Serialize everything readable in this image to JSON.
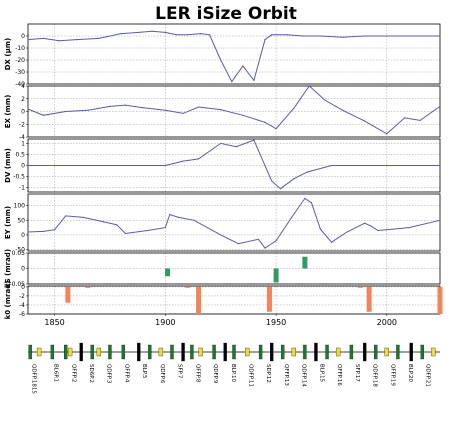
{
  "chart_data": [
    {
      "type": "line",
      "title": "LER iSize Orbit",
      "ylabel": "DX (μm)",
      "ylim": [
        -40,
        10
      ],
      "yticks": [
        0,
        -10,
        -20,
        -30,
        -40
      ],
      "xlim": [
        1838,
        2024
      ],
      "x": [
        1838,
        1845,
        1852,
        1860,
        1870,
        1880,
        1888,
        1894,
        1900,
        1905,
        1910,
        1916,
        1920,
        1925,
        1930,
        1935,
        1940,
        1945,
        1948,
        1955,
        1962,
        1970,
        1980,
        1990,
        2000,
        2010,
        2024
      ],
      "y": [
        -3,
        -2,
        -4,
        -3,
        -2,
        2,
        3,
        4,
        3,
        1,
        1,
        2,
        1,
        -20,
        -38,
        -25,
        -37,
        -3,
        1,
        1,
        0,
        0,
        -1,
        0,
        0,
        0,
        0
      ]
    },
    {
      "type": "line",
      "ylabel": "EX (mm)",
      "ylim": [
        -4,
        4
      ],
      "yticks": [
        4,
        2,
        0,
        -2,
        -4
      ],
      "xlim": [
        1838,
        2024
      ],
      "x": [
        1838,
        1845,
        1855,
        1865,
        1875,
        1882,
        1890,
        1900,
        1908,
        1915,
        1925,
        1935,
        1945,
        1950,
        1958,
        1965,
        1972,
        1980,
        1990,
        2000,
        2008,
        2015,
        2024
      ],
      "y": [
        0.4,
        -0.6,
        0,
        0.2,
        0.8,
        1.0,
        0.6,
        0.2,
        -0.3,
        0.7,
        0.3,
        -0.6,
        -1.7,
        -2.7,
        0.5,
        4.0,
        1.8,
        0.2,
        -1.5,
        -3.5,
        -1.0,
        -1.4,
        0.8
      ]
    },
    {
      "type": "line",
      "ylabel": "DV (mm)",
      "ylim": [
        -1.2,
        1.2
      ],
      "yticks": [
        1,
        0.5,
        0,
        -0.5,
        -1
      ],
      "xlim": [
        1838,
        2024
      ],
      "x": [
        1838,
        1900,
        1908,
        1915,
        1925,
        1932,
        1940,
        1948,
        1952,
        1958,
        1964,
        1975,
        2000,
        2024
      ],
      "y": [
        0,
        0,
        0.2,
        0.3,
        1.0,
        0.85,
        1.15,
        -0.7,
        -1.05,
        -0.6,
        -0.3,
        0,
        0,
        0
      ]
    },
    {
      "type": "line",
      "ylabel": "EY (mm)",
      "ylim": [
        -55,
        140
      ],
      "yticks": [
        100,
        50,
        0,
        -50
      ],
      "xlim": [
        1838,
        2024
      ],
      "x": [
        1838,
        1845,
        1850,
        1855,
        1863,
        1872,
        1878,
        1882,
        1892,
        1900,
        1902,
        1906,
        1913,
        1925,
        1933,
        1942,
        1945,
        1950,
        1957,
        1963,
        1966,
        1970,
        1975,
        1982,
        1990,
        1993,
        1996,
        2010,
        2024
      ],
      "y": [
        10,
        12,
        18,
        65,
        60,
        45,
        35,
        5,
        15,
        25,
        70,
        60,
        50,
        0,
        -30,
        -15,
        -45,
        -20,
        60,
        125,
        110,
        20,
        -25,
        10,
        40,
        30,
        15,
        25,
        50
      ]
    },
    {
      "type": "bar",
      "ylabel": "kS (mrad)",
      "ylim": [
        -0.05,
        0.05
      ],
      "yticks": [
        0.05,
        0,
        -0.05
      ],
      "xlim": [
        1838,
        2024
      ],
      "x": [
        1901,
        1950,
        1963
      ],
      "values": [
        -0.025,
        -0.045,
        0.038
      ],
      "color": "#2e9c62"
    },
    {
      "type": "bar",
      "ylabel": "k0 (mrad)",
      "ylim": [
        -6,
        0.2
      ],
      "yticks": [
        0,
        -2,
        -4,
        -6
      ],
      "xlim": [
        1838,
        2024
      ],
      "x": [
        1856,
        1865,
        1910,
        1915,
        1947,
        1988,
        1992,
        2024
      ],
      "values": [
        -3.5,
        -0.2,
        -0.2,
        -6.0,
        -5.5,
        -0.2,
        -5.5,
        -6.0
      ],
      "color": "#f2835a"
    }
  ],
  "x_axis": {
    "ticks": [
      1850,
      1900,
      1950,
      2000
    ]
  },
  "lattice": {
    "colors": {
      "quad": "#1d7a2c",
      "bend": "#f0dc30",
      "sext": "#000000",
      "drift": "#000000"
    },
    "elements": [
      {
        "x": 1839,
        "kind": "quad"
      },
      {
        "x": 1843,
        "kind": "bend"
      },
      {
        "x": 1849,
        "kind": "quad"
      },
      {
        "x": 1855,
        "kind": "quad"
      },
      {
        "x": 1857,
        "kind": "bend"
      },
      {
        "x": 1862,
        "kind": "sext"
      },
      {
        "x": 1867,
        "kind": "quad"
      },
      {
        "x": 1870,
        "kind": "bend"
      },
      {
        "x": 1875,
        "kind": "quad"
      },
      {
        "x": 1881,
        "kind": "quad"
      },
      {
        "x": 1888,
        "kind": "sext"
      },
      {
        "x": 1893,
        "kind": "quad"
      },
      {
        "x": 1898,
        "kind": "bend"
      },
      {
        "x": 1903,
        "kind": "quad"
      },
      {
        "x": 1908,
        "kind": "sext"
      },
      {
        "x": 1912,
        "kind": "quad"
      },
      {
        "x": 1916,
        "kind": "bend"
      },
      {
        "x": 1922,
        "kind": "quad"
      },
      {
        "x": 1927,
        "kind": "sext"
      },
      {
        "x": 1931,
        "kind": "quad"
      },
      {
        "x": 1937,
        "kind": "bend"
      },
      {
        "x": 1943,
        "kind": "quad"
      },
      {
        "x": 1948,
        "kind": "sext"
      },
      {
        "x": 1953,
        "kind": "quad"
      },
      {
        "x": 1958,
        "kind": "bend"
      },
      {
        "x": 1963,
        "kind": "quad"
      },
      {
        "x": 1968,
        "kind": "sext"
      },
      {
        "x": 1973,
        "kind": "quad"
      },
      {
        "x": 1978,
        "kind": "bend"
      },
      {
        "x": 1984,
        "kind": "quad"
      },
      {
        "x": 1990,
        "kind": "sext"
      },
      {
        "x": 1995,
        "kind": "quad"
      },
      {
        "x": 2000,
        "kind": "bend"
      },
      {
        "x": 2005,
        "kind": "quad"
      },
      {
        "x": 2011,
        "kind": "sext"
      },
      {
        "x": 2016,
        "kind": "quad"
      },
      {
        "x": 2021,
        "kind": "bend"
      }
    ],
    "labels": [
      {
        "x": 1840,
        "text": "QDFP.1815"
      },
      {
        "x": 1850,
        "text": "BL6P.1"
      },
      {
        "x": 1858,
        "text": "QFFP.2"
      },
      {
        "x": 1866,
        "text": "SD6P.2"
      },
      {
        "x": 1874,
        "text": "QDFP.3"
      },
      {
        "x": 1882,
        "text": "QFFP.4"
      },
      {
        "x": 1890,
        "text": "BLP.5"
      },
      {
        "x": 1898,
        "text": "QDFP.6"
      },
      {
        "x": 1906,
        "text": "SFP.7"
      },
      {
        "x": 1914,
        "text": "QFFP.8"
      },
      {
        "x": 1922,
        "text": "QDFP.9"
      },
      {
        "x": 1930,
        "text": "BLP.10"
      },
      {
        "x": 1938,
        "text": "QDFP.11"
      },
      {
        "x": 1946,
        "text": "SDP.12"
      },
      {
        "x": 1954,
        "text": "QFFP.13"
      },
      {
        "x": 1962,
        "text": "QDFP.14"
      },
      {
        "x": 1970,
        "text": "BLP.15"
      },
      {
        "x": 1978,
        "text": "QFFP.16"
      },
      {
        "x": 1986,
        "text": "SFP.17"
      },
      {
        "x": 1994,
        "text": "QDFP.18"
      },
      {
        "x": 2002,
        "text": "QFFP.19"
      },
      {
        "x": 2010,
        "text": "BLP.20"
      },
      {
        "x": 2018,
        "text": "QDFP.21"
      }
    ]
  }
}
